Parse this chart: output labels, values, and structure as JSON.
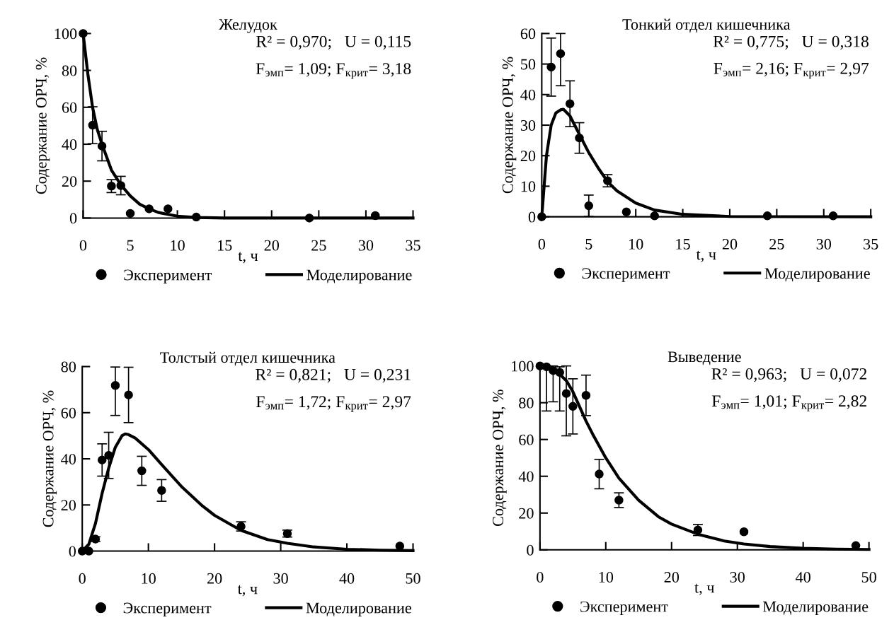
{
  "chart_data": [
    {
      "type": "scatter",
      "title": "Желудок",
      "xlabel": "t, ч",
      "ylabel": "Содержание ОРЧ, %",
      "xlim": [
        0,
        35
      ],
      "xticks": [
        0,
        5,
        10,
        15,
        20,
        25,
        30,
        35
      ],
      "ylim": [
        0,
        100
      ],
      "yticks": [
        0,
        20,
        40,
        60,
        80,
        100
      ],
      "legend": "bottom",
      "grid": false,
      "annotations": [
        "R² = 0,970;   U = 0,115",
        "F$_{эмп}$= 1,09; F$_{крит}$= 3,18"
      ],
      "series": [
        {
          "name": "Эксперимент",
          "marker": "circle",
          "color": "#000000",
          "x": [
            0,
            1,
            2,
            3,
            4,
            5,
            7,
            9,
            12,
            24,
            31
          ],
          "values": [
            100,
            50.3,
            39,
            17.3,
            17.6,
            2.5,
            5,
            5,
            0.5,
            0,
            1.3
          ],
          "errors": [
            null,
            10,
            8,
            3.5,
            5,
            null,
            null,
            null,
            null,
            null,
            null
          ]
        },
        {
          "name": "Моделирование",
          "type": "line",
          "color": "#000000",
          "x": [
            0,
            0.5,
            1,
            1.5,
            2,
            3,
            4,
            5,
            6,
            7,
            8,
            9,
            10,
            12,
            15,
            20,
            35
          ],
          "values": [
            100,
            78,
            60,
            48,
            40,
            26,
            18,
            12,
            7.5,
            5,
            3,
            2,
            1,
            0.3,
            0,
            0,
            0
          ]
        }
      ]
    },
    {
      "type": "scatter",
      "title": "Тонкий отдел кишечника",
      "xlabel": "t, ч",
      "ylabel": "Содержание ОРЧ, %",
      "xlim": [
        0,
        35
      ],
      "xticks": [
        0,
        5,
        10,
        15,
        20,
        25,
        30,
        35
      ],
      "ylim": [
        0,
        60
      ],
      "yticks": [
        0,
        10,
        20,
        30,
        40,
        50,
        60
      ],
      "legend": "bottom",
      "grid": false,
      "annotations": [
        "R² = 0,775;   U = 0,318",
        "F$_{эмп}$= 2,16; F$_{крит}$= 2,97"
      ],
      "series": [
        {
          "name": "Эксперимент",
          "marker": "circle",
          "color": "#000000",
          "x": [
            0,
            1,
            2,
            3,
            4,
            5,
            7,
            9,
            12,
            24,
            31
          ],
          "values": [
            0,
            49,
            53.4,
            37,
            25.8,
            3.6,
            11.8,
            1.6,
            0.3,
            0.3,
            0.3
          ],
          "errors": [
            null,
            9.5,
            [
              42.9,
              60
            ],
            7.5,
            5,
            3.5,
            2,
            null,
            null,
            null,
            null
          ]
        },
        {
          "name": "Моделирование",
          "type": "line",
          "color": "#000000",
          "x": [
            0,
            0.5,
            1,
            1.5,
            2,
            2.3,
            3,
            4,
            5,
            6,
            7,
            8,
            10,
            12,
            15,
            20,
            35
          ],
          "values": [
            0,
            20,
            30,
            34,
            35,
            35.2,
            33,
            27,
            21,
            16,
            11.5,
            8.5,
            4.5,
            2.2,
            0.8,
            0.1,
            0
          ]
        }
      ]
    },
    {
      "type": "scatter",
      "title": "Толстый отдел кишечника",
      "xlabel": "t, ч",
      "ylabel": "Содержание ОРЧ, %",
      "xlim": [
        0,
        50
      ],
      "xticks": [
        0,
        10,
        20,
        30,
        40,
        50
      ],
      "ylim": [
        0,
        80
      ],
      "yticks": [
        0,
        20,
        40,
        60,
        80
      ],
      "legend": "bottom",
      "grid": false,
      "annotations": [
        "R² = 0,821;   U = 0,231",
        "F$_{эмп}$= 1,72; F$_{крит}$= 2,97"
      ],
      "series": [
        {
          "name": "Эксперимент",
          "marker": "circle",
          "color": "#000000",
          "x": [
            0,
            1,
            2,
            3,
            4,
            5,
            7,
            9,
            12,
            24,
            31,
            48
          ],
          "values": [
            0,
            0,
            5.2,
            39.5,
            41.5,
            71.8,
            67.7,
            34.8,
            26.3,
            10.7,
            7.6,
            2.2
          ],
          "errors": [
            null,
            null,
            1,
            7,
            10,
            [
              58.8,
              79.8
            ],
            12,
            6.3,
            4.7,
            2,
            1.5,
            null
          ]
        },
        {
          "name": "Моделирование",
          "type": "line",
          "color": "#000000",
          "x": [
            0,
            1,
            2,
            3,
            4,
            5,
            6,
            6.5,
            7,
            8,
            10,
            12,
            15,
            18,
            20,
            24,
            28,
            31,
            35,
            40,
            45,
            50
          ],
          "values": [
            0,
            3,
            12,
            25,
            36,
            45,
            50,
            50.8,
            50.5,
            49,
            44,
            37.5,
            28,
            20,
            15.5,
            9,
            5,
            3.4,
            1.8,
            0.8,
            0.4,
            0.2
          ]
        }
      ]
    },
    {
      "type": "scatter",
      "title": "Выведение",
      "xlabel": "t, ч",
      "ylabel": "Содержание ОРЧ, %",
      "xlim": [
        0,
        50
      ],
      "xticks": [
        0,
        10,
        20,
        30,
        40,
        50
      ],
      "ylim": [
        0,
        100
      ],
      "yticks": [
        0,
        20,
        40,
        60,
        80,
        100
      ],
      "legend": "bottom",
      "grid": false,
      "annotations": [
        "R² = 0,963;   U = 0,072",
        "F$_{эмп}$= 1,01; F$_{крит}$= 2,82"
      ],
      "series": [
        {
          "name": "Эксперимент",
          "marker": "circle",
          "color": "#000000",
          "x": [
            0,
            1,
            2,
            3,
            4,
            5,
            7,
            9,
            12,
            24,
            31,
            48
          ],
          "values": [
            100,
            99.5,
            97.5,
            96.5,
            85,
            78,
            84,
            41.2,
            27,
            10.8,
            9.8,
            2.3
          ],
          "errors": [
            null,
            [
              75.5,
              100
            ],
            [
              80.5,
              100
            ],
            [
              75.5,
              99.5
            ],
            [
              62,
              100
            ],
            15,
            11,
            8,
            4,
            3,
            null,
            null
          ]
        },
        {
          "name": "Моделирование",
          "type": "line",
          "color": "#000000",
          "x": [
            0,
            2,
            4,
            5,
            6,
            7,
            8,
            10,
            12,
            15,
            18,
            20,
            24,
            28,
            31,
            35,
            40,
            45,
            50
          ],
          "values": [
            100,
            99,
            92,
            86,
            78,
            70,
            63,
            50,
            39,
            27,
            18,
            14,
            8.5,
            4.8,
            3.2,
            1.8,
            0.8,
            0.4,
            0.2
          ]
        }
      ]
    }
  ]
}
